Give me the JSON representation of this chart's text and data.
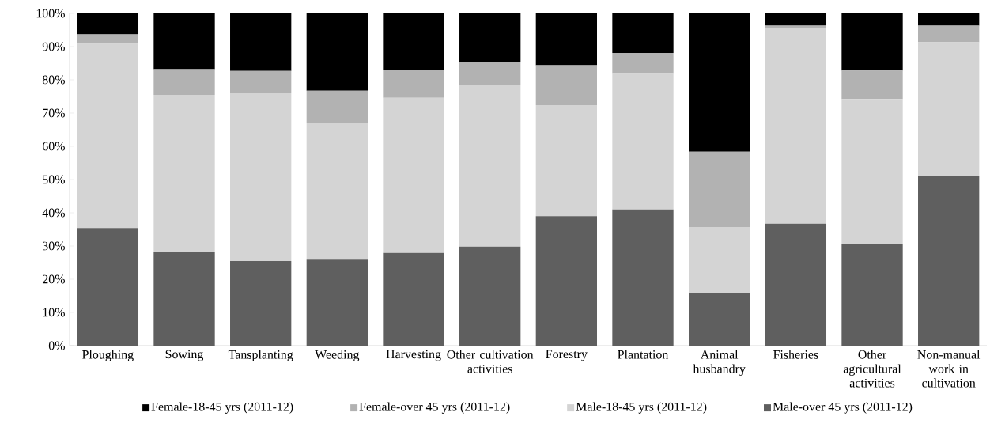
{
  "chart_data": {
    "type": "bar",
    "stacked": true,
    "categories": [
      "Ploughing",
      "Sowing",
      "Tansplanting",
      "Weeding",
      "Harvesting",
      "Other cultivation activities",
      "Forestry",
      "Plantation",
      "Animal husbandry",
      "Fisheries",
      "Other agricultural activities",
      "Non-manual work in cultivation"
    ],
    "series": [
      {
        "name": "Male-over 45 yrs (2011-12)",
        "color": "#5f5f5f",
        "values": [
          35.4,
          28.2,
          25.5,
          25.9,
          27.9,
          29.8,
          39.0,
          41.0,
          15.8,
          36.7,
          30.6,
          51.2
        ]
      },
      {
        "name": "Male-18-45 yrs (2011-12)",
        "color": "#d4d4d4",
        "values": [
          55.4,
          47.3,
          50.7,
          41.0,
          46.7,
          48.5,
          33.4,
          41.0,
          19.9,
          58.9,
          43.6,
          40.1
        ]
      },
      {
        "name": "Female-over 45 yrs (2011-12)",
        "color": "#b2b2b2",
        "values": [
          2.9,
          7.7,
          6.5,
          9.8,
          8.4,
          7.0,
          12.0,
          6.1,
          22.7,
          0.7,
          8.6,
          5.0
        ]
      },
      {
        "name": "Female-18-45 yrs (2011-12)",
        "color": "#000000",
        "values": [
          6.3,
          16.8,
          17.3,
          23.3,
          17.0,
          14.7,
          15.6,
          11.9,
          41.6,
          3.7,
          17.2,
          3.7
        ]
      }
    ],
    "ylim": [
      0,
      100
    ],
    "yticks": [
      {
        "value": 0,
        "label": "0%"
      },
      {
        "value": 10,
        "label": "10%"
      },
      {
        "value": 20,
        "label": "20%"
      },
      {
        "value": 30,
        "label": "30%"
      },
      {
        "value": 40,
        "label": "40%"
      },
      {
        "value": 50,
        "label": "50%"
      },
      {
        "value": 60,
        "label": "60%"
      },
      {
        "value": 70,
        "label": "70%"
      },
      {
        "value": 80,
        "label": "80%"
      },
      {
        "value": 90,
        "label": "90%"
      },
      {
        "value": 100,
        "label": "100%"
      }
    ],
    "legend": "bottom",
    "grid": false
  }
}
